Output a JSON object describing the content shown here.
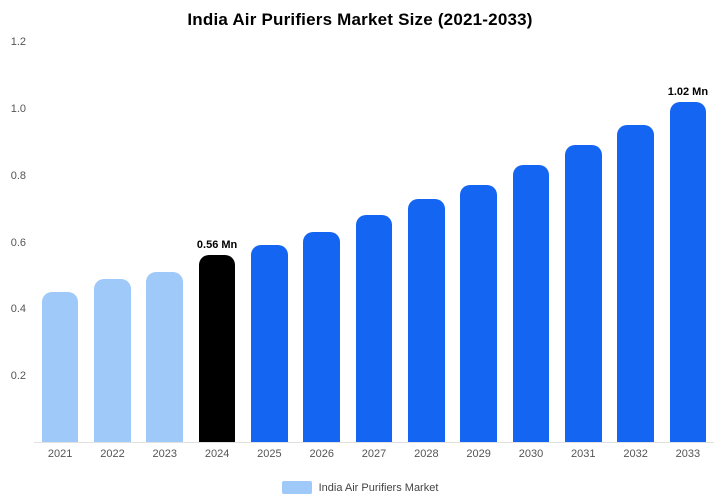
{
  "title": "India Air Purifiers Market Size (2021-2033)",
  "legend": {
    "label": "India Air Purifiers Market",
    "swatch_color": "#9FC9F8"
  },
  "colors": {
    "light_blue": "#9FC9F8",
    "blue": "#1365F2",
    "black": "#000000"
  },
  "chart_data": {
    "type": "bar",
    "title": "India Air Purifiers Market Size (2021-2033)",
    "categories": [
      "2021",
      "2022",
      "2023",
      "2024",
      "2025",
      "2026",
      "2027",
      "2028",
      "2029",
      "2030",
      "2031",
      "2032",
      "2033"
    ],
    "values": [
      0.45,
      0.49,
      0.51,
      0.56,
      0.59,
      0.63,
      0.68,
      0.73,
      0.77,
      0.83,
      0.89,
      0.95,
      1.02
    ],
    "unit": "Mn",
    "bar_colors": [
      "#9FC9F8",
      "#9FC9F8",
      "#9FC9F8",
      "#000000",
      "#1365F2",
      "#1365F2",
      "#1365F2",
      "#1365F2",
      "#1365F2",
      "#1365F2",
      "#1365F2",
      "#1365F2",
      "#1365F2"
    ],
    "data_labels": [
      "",
      "",
      "",
      "0.56 Mn",
      "",
      "",
      "",
      "",
      "",
      "",
      "",
      "",
      "1.02 Mn"
    ],
    "xlabel": "",
    "ylabel": "",
    "ylim": [
      0,
      1.2
    ],
    "yticks": [
      0.2,
      0.4,
      0.6,
      0.8,
      1.0,
      1.2
    ],
    "ytick_labels": [
      "0.2",
      "0.4",
      "0.6",
      "0.8",
      "1.0",
      "1.2"
    ],
    "grid": false,
    "legend_entries": [
      "India Air Purifiers Market"
    ],
    "legend_position": "bottom"
  }
}
